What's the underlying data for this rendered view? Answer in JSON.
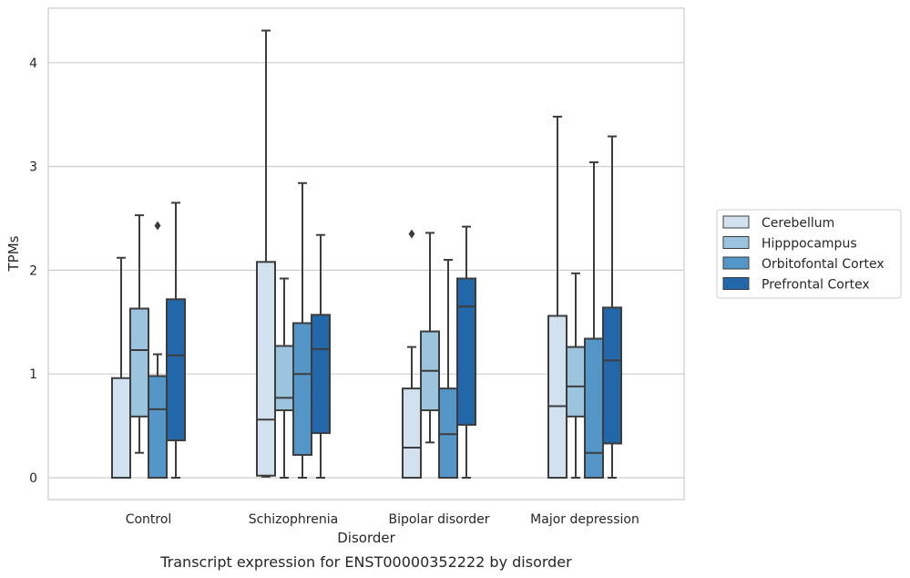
{
  "chart_data": {
    "type": "box",
    "xlabel": "Disorder",
    "ylabel": "TPMs",
    "caption": "Transcript expression for ENST00000352222 by disorder",
    "ylim": [
      -0.2,
      4.55
    ],
    "yticks": [
      0,
      1,
      2,
      3,
      4
    ],
    "grid": "horizontal",
    "legend_position": "right",
    "categories": [
      "Control",
      "Schizophrenia",
      "Bipolar disorder",
      "Major depression"
    ],
    "series": [
      {
        "name": "Cerebellum",
        "color": "#d1e1ef",
        "boxes": [
          {
            "whislo": 0.0,
            "q1": 0.0,
            "med": 0.0,
            "q3": 0.96,
            "whishi": 2.12,
            "fliers": []
          },
          {
            "whislo": 0.01,
            "q1": 0.02,
            "med": 0.56,
            "q3": 2.08,
            "whishi": 4.31,
            "fliers": []
          },
          {
            "whislo": 0.0,
            "q1": 0.0,
            "med": 0.29,
            "q3": 0.86,
            "whishi": 1.26,
            "fliers": [
              2.35
            ]
          },
          {
            "whislo": 0.0,
            "q1": 0.0,
            "med": 0.69,
            "q3": 1.56,
            "whishi": 3.48,
            "fliers": []
          }
        ]
      },
      {
        "name": "Hipppocampus",
        "color": "#9bc4de",
        "boxes": [
          {
            "whislo": 0.24,
            "q1": 0.59,
            "med": 1.23,
            "q3": 1.63,
            "whishi": 2.53,
            "fliers": []
          },
          {
            "whislo": 0.0,
            "q1": 0.65,
            "med": 0.77,
            "q3": 1.27,
            "whishi": 1.92,
            "fliers": []
          },
          {
            "whislo": 0.34,
            "q1": 0.65,
            "med": 1.03,
            "q3": 1.41,
            "whishi": 2.36,
            "fliers": []
          },
          {
            "whislo": 0.0,
            "q1": 0.59,
            "med": 0.88,
            "q3": 1.26,
            "whishi": 1.97,
            "fliers": []
          }
        ]
      },
      {
        "name": "Orbitofontal Cortex",
        "color": "#5596c8",
        "boxes": [
          {
            "whislo": 0.0,
            "q1": 0.0,
            "med": 0.66,
            "q3": 0.98,
            "whishi": 1.19,
            "fliers": [
              2.43
            ]
          },
          {
            "whislo": 0.0,
            "q1": 0.22,
            "med": 1.0,
            "q3": 1.49,
            "whishi": 2.84,
            "fliers": []
          },
          {
            "whislo": 0.0,
            "q1": 0.0,
            "med": 0.42,
            "q3": 0.86,
            "whishi": 2.1,
            "fliers": []
          },
          {
            "whislo": 0.0,
            "q1": 0.0,
            "med": 0.24,
            "q3": 1.34,
            "whishi": 3.04,
            "fliers": []
          }
        ]
      },
      {
        "name": "Prefrontal Cortex",
        "color": "#2367ab",
        "boxes": [
          {
            "whislo": 0.0,
            "q1": 0.36,
            "med": 1.18,
            "q3": 1.72,
            "whishi": 2.65,
            "fliers": []
          },
          {
            "whislo": 0.0,
            "q1": 0.43,
            "med": 1.24,
            "q3": 1.57,
            "whishi": 2.34,
            "fliers": []
          },
          {
            "whislo": 0.0,
            "q1": 0.51,
            "med": 1.65,
            "q3": 1.92,
            "whishi": 2.42,
            "fliers": []
          },
          {
            "whislo": 0.0,
            "q1": 0.33,
            "med": 1.13,
            "q3": 1.64,
            "whishi": 3.29,
            "fliers": []
          }
        ]
      }
    ],
    "line_color": "#3d3d3d",
    "grid_color": "#cccccc",
    "frame_color": "#cccccc"
  }
}
